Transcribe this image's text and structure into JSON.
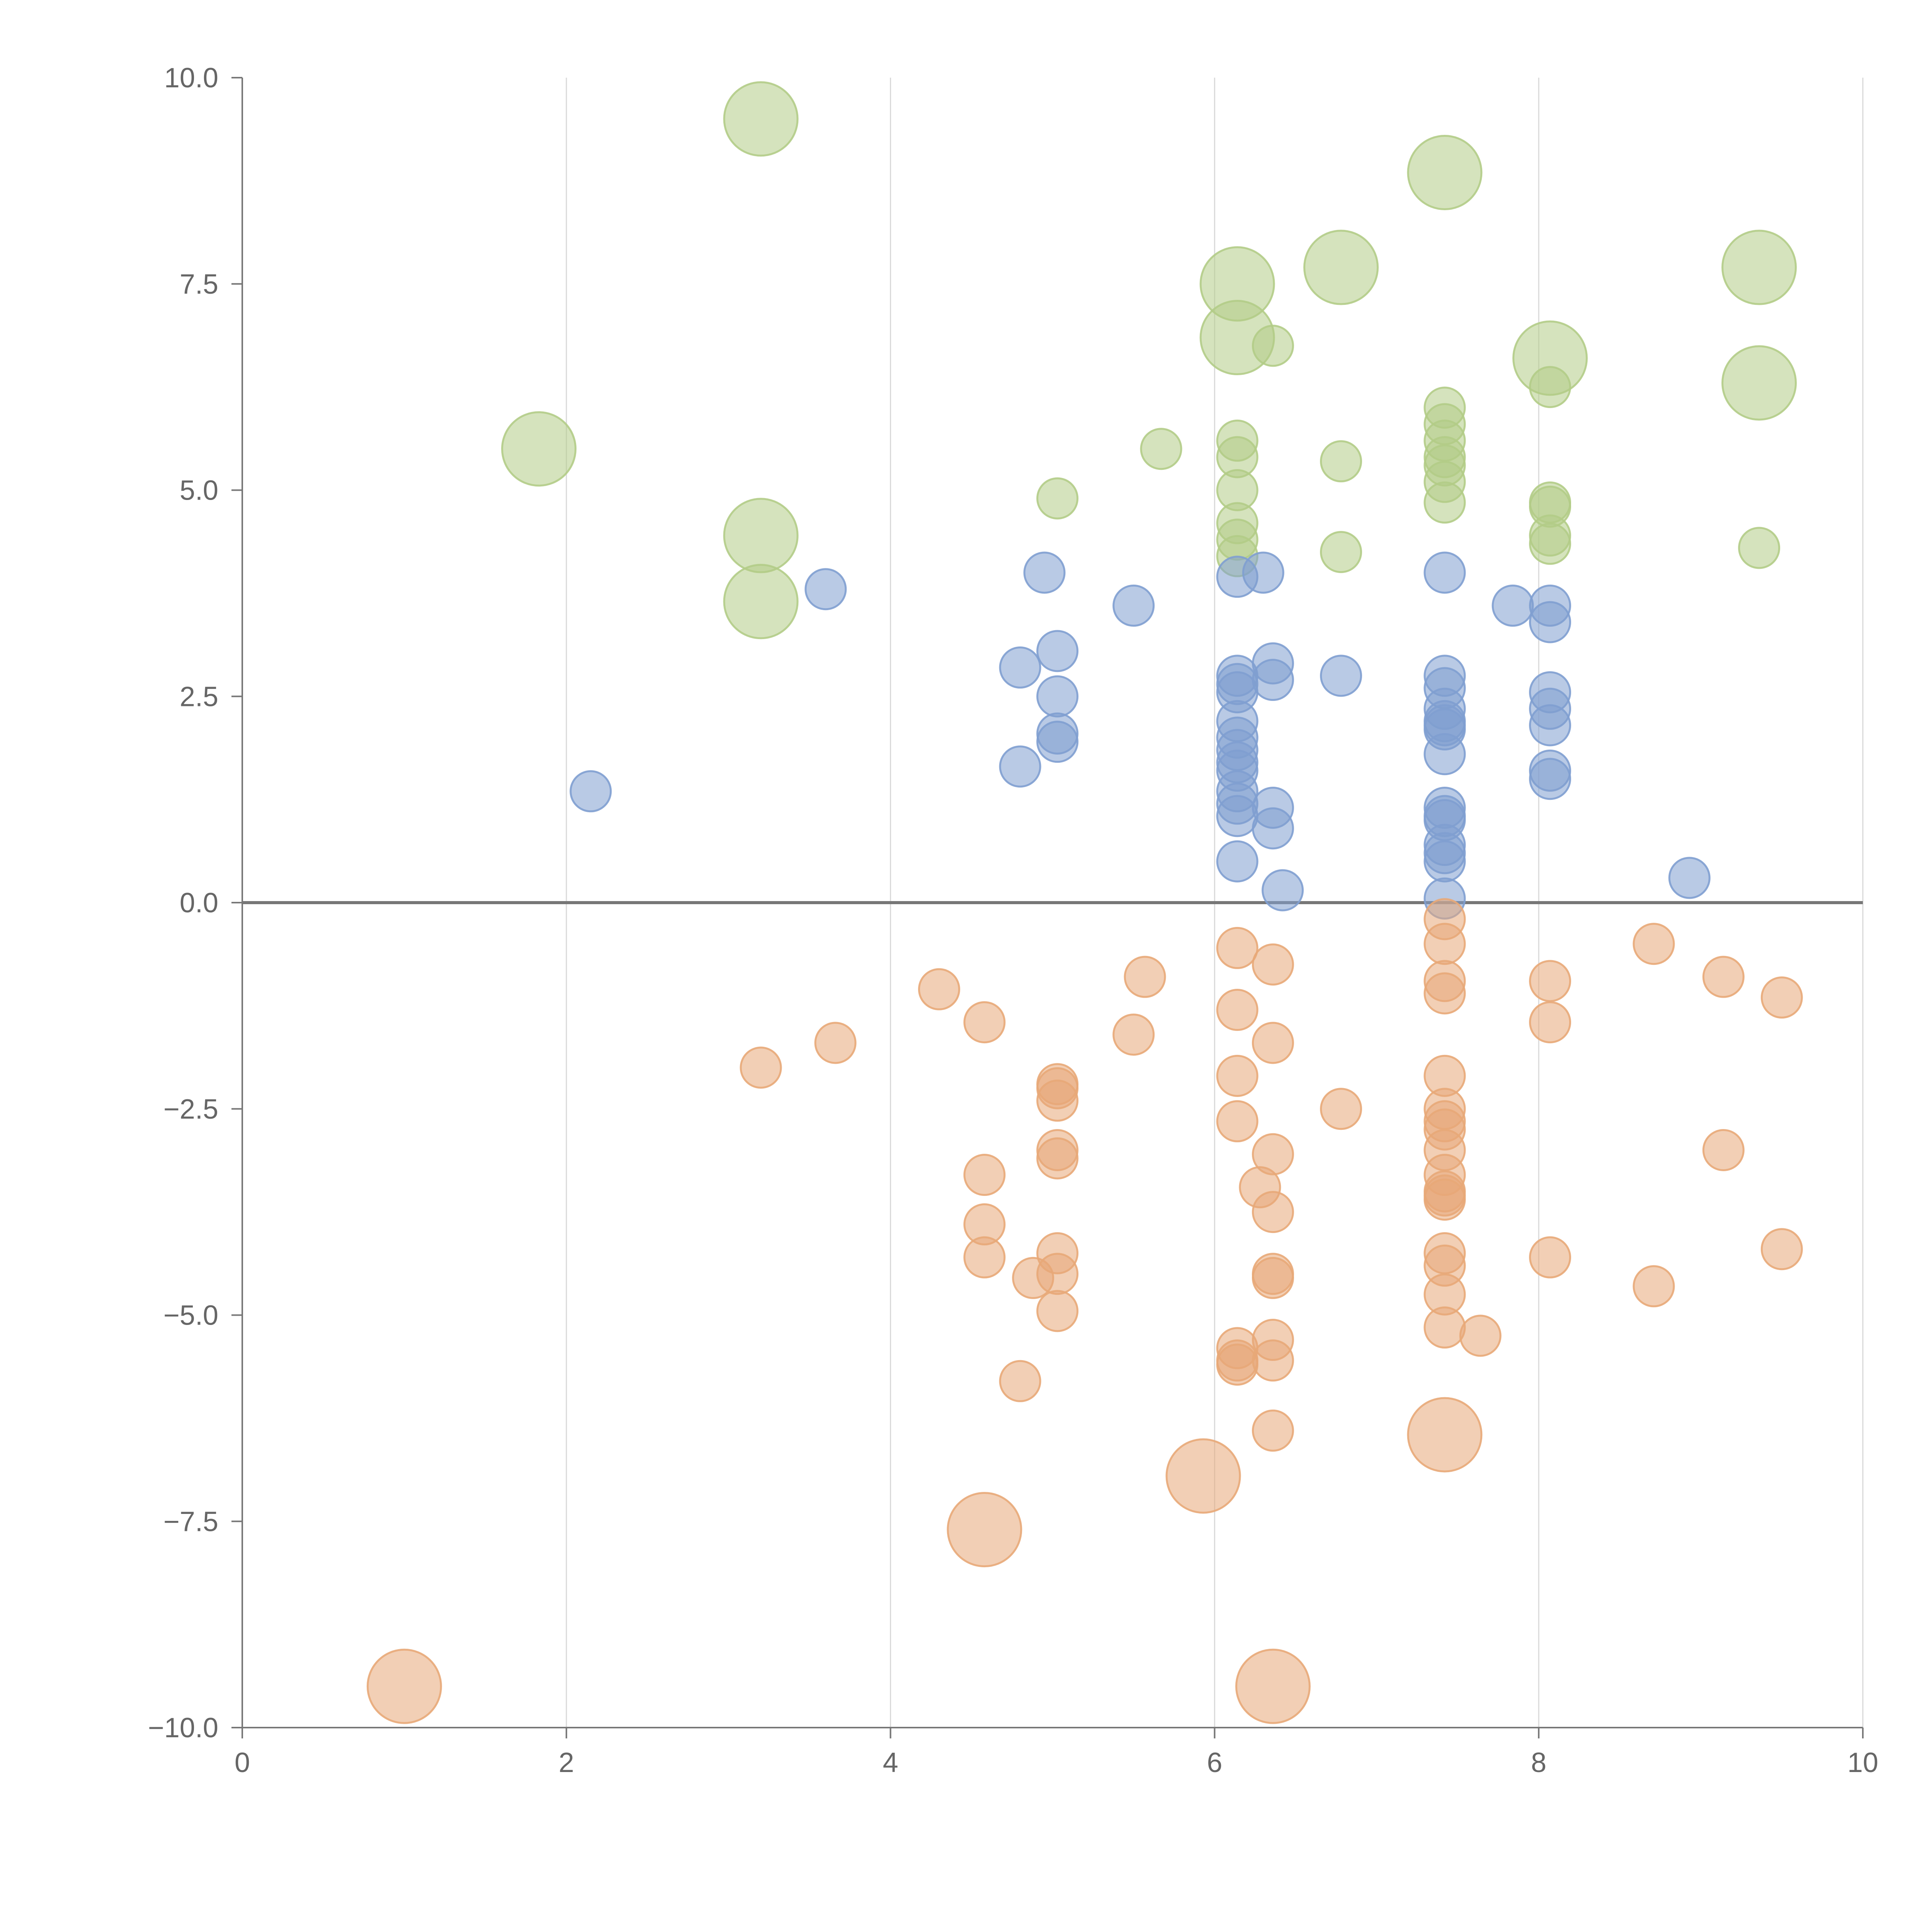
{
  "chart_data": {
    "type": "scatter",
    "subtype": "bubble",
    "title": "",
    "xlabel": "",
    "ylabel": "",
    "xlim": [
      0,
      10
    ],
    "ylim": [
      -10,
      10
    ],
    "x_ticks": [
      0,
      2,
      4,
      6,
      8,
      10
    ],
    "x_tick_labels": [
      "0",
      "2",
      "4",
      "6",
      "8",
      "10"
    ],
    "y_ticks": [
      -10,
      -7.5,
      -5,
      -2.5,
      0,
      2.5,
      5,
      7.5,
      10
    ],
    "y_tick_labels": [
      "−10.0",
      "−7.5",
      "−5.0",
      "−2.5",
      "0.0",
      "2.5",
      "5.0",
      "7.5",
      "10.0"
    ],
    "grid": {
      "x": true,
      "y": false
    },
    "reference_line_y": 0,
    "legend": "none",
    "size_unit": "relative",
    "series": [
      {
        "color": "#b3cc87",
        "points": [
          [
            3.2,
            9.5,
            2
          ],
          [
            7.42,
            8.85,
            2
          ],
          [
            6.14,
            7.5,
            2
          ],
          [
            6.78,
            7.7,
            2
          ],
          [
            9.36,
            7.7,
            2
          ],
          [
            6.14,
            6.85,
            2
          ],
          [
            6.36,
            6.75,
            1
          ],
          [
            8.07,
            6.6,
            2
          ],
          [
            9.36,
            6.3,
            2
          ],
          [
            8.07,
            6.25,
            1
          ],
          [
            1.83,
            5.5,
            2
          ],
          [
            5.67,
            5.5,
            1
          ],
          [
            6.14,
            5.6,
            1
          ],
          [
            6.14,
            5.4,
            1
          ],
          [
            6.14,
            5.0,
            1
          ],
          [
            6.14,
            4.6,
            1
          ],
          [
            6.14,
            4.4,
            1
          ],
          [
            6.14,
            4.2,
            1
          ],
          [
            7.42,
            6.0,
            1
          ],
          [
            7.42,
            5.8,
            1
          ],
          [
            7.42,
            5.6,
            1
          ],
          [
            7.42,
            5.4,
            1
          ],
          [
            7.42,
            5.3,
            1
          ],
          [
            7.42,
            5.1,
            1
          ],
          [
            7.42,
            4.85,
            1
          ],
          [
            6.78,
            5.35,
            1
          ],
          [
            5.03,
            4.9,
            1
          ],
          [
            6.78,
            4.25,
            1
          ],
          [
            8.07,
            4.85,
            1
          ],
          [
            8.07,
            4.8,
            1
          ],
          [
            8.07,
            4.45,
            1
          ],
          [
            8.07,
            4.35,
            1
          ],
          [
            9.36,
            4.3,
            1
          ],
          [
            3.2,
            4.45,
            2
          ],
          [
            3.2,
            3.65,
            2
          ]
        ]
      },
      {
        "color": "#7f9fd0",
        "points": [
          [
            3.6,
            3.8,
            1
          ],
          [
            2.15,
            1.35,
            1
          ],
          [
            4.95,
            4.0,
            1
          ],
          [
            5.5,
            3.6,
            1
          ],
          [
            4.8,
            2.85,
            1
          ],
          [
            5.03,
            3.05,
            1
          ],
          [
            5.03,
            2.5,
            1
          ],
          [
            5.03,
            2.05,
            1
          ],
          [
            5.03,
            1.95,
            1
          ],
          [
            4.8,
            1.65,
            1
          ],
          [
            6.14,
            3.95,
            1
          ],
          [
            6.3,
            4.0,
            1
          ],
          [
            6.14,
            2.75,
            1
          ],
          [
            6.14,
            2.65,
            1
          ],
          [
            6.14,
            2.55,
            1
          ],
          [
            6.14,
            2.2,
            1
          ],
          [
            6.14,
            2.0,
            1
          ],
          [
            6.14,
            1.85,
            1
          ],
          [
            6.14,
            1.7,
            1
          ],
          [
            6.14,
            1.6,
            1
          ],
          [
            6.14,
            1.35,
            1
          ],
          [
            6.14,
            1.2,
            1
          ],
          [
            6.14,
            1.05,
            1
          ],
          [
            6.14,
            0.5,
            1
          ],
          [
            6.36,
            2.9,
            1
          ],
          [
            6.36,
            2.7,
            1
          ],
          [
            6.36,
            1.15,
            1
          ],
          [
            6.36,
            0.9,
            1
          ],
          [
            6.42,
            0.15,
            1
          ],
          [
            6.78,
            2.75,
            1
          ],
          [
            7.42,
            4.0,
            1
          ],
          [
            7.42,
            2.75,
            1
          ],
          [
            7.42,
            2.6,
            1
          ],
          [
            7.42,
            2.35,
            1
          ],
          [
            7.42,
            2.2,
            1
          ],
          [
            7.42,
            2.15,
            1
          ],
          [
            7.42,
            2.1,
            1
          ],
          [
            7.42,
            1.8,
            1
          ],
          [
            7.42,
            1.15,
            1
          ],
          [
            7.42,
            1.05,
            1
          ],
          [
            7.42,
            1.0,
            1
          ],
          [
            7.42,
            0.7,
            1
          ],
          [
            7.42,
            0.6,
            1
          ],
          [
            7.42,
            0.5,
            1
          ],
          [
            7.42,
            0.05,
            1
          ],
          [
            7.84,
            3.6,
            1
          ],
          [
            8.07,
            3.6,
            1
          ],
          [
            8.07,
            3.4,
            1
          ],
          [
            8.07,
            2.55,
            1
          ],
          [
            8.07,
            2.35,
            1
          ],
          [
            8.07,
            2.15,
            1
          ],
          [
            8.07,
            1.6,
            1
          ],
          [
            8.07,
            1.5,
            1
          ],
          [
            8.93,
            0.3,
            1
          ]
        ]
      },
      {
        "color": "#e8a878",
        "points": [
          [
            3.2,
            -2.0,
            1
          ],
          [
            3.66,
            -1.7,
            1
          ],
          [
            4.3,
            -1.05,
            1
          ],
          [
            4.58,
            -1.45,
            1
          ],
          [
            4.58,
            -3.3,
            1
          ],
          [
            4.58,
            -3.9,
            1
          ],
          [
            4.58,
            -4.3,
            1
          ],
          [
            4.88,
            -4.55,
            1
          ],
          [
            4.8,
            -5.8,
            1
          ],
          [
            5.03,
            -2.2,
            1
          ],
          [
            5.03,
            -2.25,
            1
          ],
          [
            5.03,
            -2.4,
            1
          ],
          [
            5.03,
            -3.0,
            1
          ],
          [
            5.03,
            -3.1,
            1
          ],
          [
            5.03,
            -4.25,
            1
          ],
          [
            5.03,
            -4.5,
            1
          ],
          [
            5.03,
            -4.95,
            1
          ],
          [
            5.5,
            -1.6,
            1
          ],
          [
            5.57,
            -0.9,
            1
          ],
          [
            6.14,
            -0.55,
            1
          ],
          [
            6.14,
            -1.3,
            1
          ],
          [
            6.14,
            -2.1,
            1
          ],
          [
            6.14,
            -2.65,
            1
          ],
          [
            6.14,
            -5.4,
            1
          ],
          [
            6.14,
            -5.55,
            1
          ],
          [
            6.14,
            -5.6,
            1
          ],
          [
            6.28,
            -3.45,
            1
          ],
          [
            6.36,
            -0.75,
            1
          ],
          [
            6.36,
            -1.7,
            1
          ],
          [
            6.36,
            -3.05,
            1
          ],
          [
            6.36,
            -3.75,
            1
          ],
          [
            6.36,
            -4.5,
            1
          ],
          [
            6.36,
            -4.55,
            1
          ],
          [
            6.36,
            -5.3,
            1
          ],
          [
            6.36,
            -5.55,
            1
          ],
          [
            6.36,
            -6.4,
            1
          ],
          [
            6.78,
            -2.5,
            1
          ],
          [
            7.42,
            -0.2,
            1
          ],
          [
            7.42,
            -0.5,
            1
          ],
          [
            7.42,
            -0.95,
            1
          ],
          [
            7.42,
            -1.1,
            1
          ],
          [
            7.42,
            -2.1,
            1
          ],
          [
            7.42,
            -2.5,
            1
          ],
          [
            7.42,
            -2.65,
            1
          ],
          [
            7.42,
            -2.75,
            1
          ],
          [
            7.42,
            -3.0,
            1
          ],
          [
            7.42,
            -3.3,
            1
          ],
          [
            7.42,
            -3.5,
            1
          ],
          [
            7.42,
            -3.55,
            1
          ],
          [
            7.42,
            -3.6,
            1
          ],
          [
            7.42,
            -4.25,
            1
          ],
          [
            7.42,
            -4.4,
            1
          ],
          [
            7.42,
            -4.75,
            1
          ],
          [
            7.42,
            -5.15,
            1
          ],
          [
            7.64,
            -5.25,
            1
          ],
          [
            8.07,
            -0.95,
            1
          ],
          [
            8.07,
            -1.45,
            1
          ],
          [
            8.07,
            -4.3,
            1
          ],
          [
            8.71,
            -0.5,
            1
          ],
          [
            8.71,
            -4.65,
            1
          ],
          [
            9.14,
            -0.9,
            1
          ],
          [
            9.14,
            -3.0,
            1
          ],
          [
            9.5,
            -1.15,
            1
          ],
          [
            9.5,
            -4.2,
            1
          ],
          [
            7.42,
            -6.45,
            2
          ],
          [
            5.93,
            -6.95,
            2
          ],
          [
            4.58,
            -7.6,
            2
          ],
          [
            1.0,
            -9.5,
            2
          ],
          [
            6.36,
            -9.5,
            2
          ]
        ]
      }
    ]
  }
}
